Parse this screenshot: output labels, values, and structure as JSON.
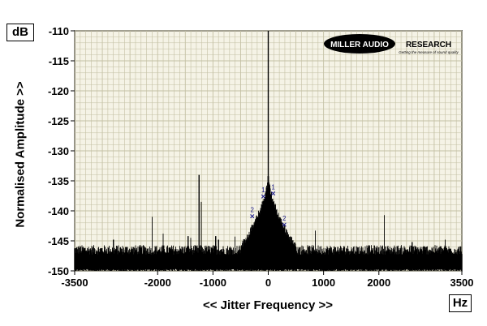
{
  "chart_data": {
    "type": "line",
    "ylabel": "Normalised Amplitude >>",
    "xlabel": "<< Jitter Frequency >>",
    "y_unit": "dB",
    "x_unit": "Hz",
    "xlim": [
      -3500,
      3500
    ],
    "ylim": [
      -150,
      -110
    ],
    "x_ticks": [
      -3500,
      -2000,
      -1000,
      0,
      1000,
      2000,
      3500
    ],
    "x_tick_labels": [
      "-3500",
      "-2000",
      "-1000",
      "0",
      "1000",
      "2000",
      "3500"
    ],
    "y_ticks": [
      -110,
      -115,
      -120,
      -125,
      -130,
      -135,
      -140,
      -145,
      -150
    ],
    "y_tick_labels": [
      "-110",
      "-115",
      "-120",
      "-125",
      "-130",
      "-135",
      "-140",
      "-145",
      "-150"
    ],
    "grid": true,
    "noise_floor_db": -146.5,
    "carrier": {
      "x": 0,
      "y": -110
    },
    "spurs": [
      {
        "x": -2800,
        "y": -144.8
      },
      {
        "x": -2100,
        "y": -141
      },
      {
        "x": -1900,
        "y": -143.8
      },
      {
        "x": -1450,
        "y": -144.2
      },
      {
        "x": -1400,
        "y": -144.5
      },
      {
        "x": -1250,
        "y": -134
      },
      {
        "x": -1210,
        "y": -138.5
      },
      {
        "x": -950,
        "y": -144.2
      },
      {
        "x": -900,
        "y": -144.8
      },
      {
        "x": -600,
        "y": -144.3
      },
      {
        "x": 850,
        "y": -143.3
      },
      {
        "x": 2100,
        "y": -140.7
      },
      {
        "x": 2600,
        "y": -145.2
      },
      {
        "x": 3200,
        "y": -144.8
      }
    ],
    "markers": [
      {
        "label": "1",
        "x": -90,
        "y": -137.6
      },
      {
        "label": "1",
        "x": 90,
        "y": -137.1
      },
      {
        "label": "2",
        "x": -290,
        "y": -140.9
      },
      {
        "label": "2",
        "x": 290,
        "y": -142.3
      }
    ]
  },
  "logo": {
    "brand_left": "MILLER AUDIO",
    "brand_right": "RESEARCH",
    "tagline": "Getting the measure of sound quality",
    "bg_color": "#000000",
    "fg_color": "#ffffff"
  },
  "colors": {
    "background": "#ffffff",
    "plot_background": "#f5f3e6",
    "grid": "#c4c0a4",
    "trace": "#000000",
    "marker": "#1a1a8c"
  }
}
